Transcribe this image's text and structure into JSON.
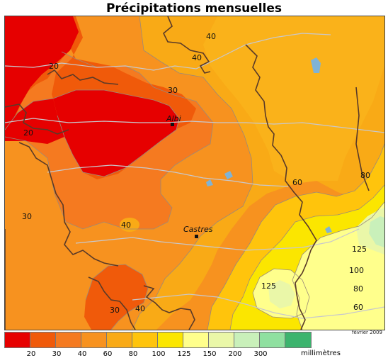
{
  "title": "Précipitations mensuelles",
  "date": "février 2009",
  "unit": "millimètres",
  "legend": {
    "colors": [
      "#e60000",
      "#f05a0a",
      "#f57a20",
      "#f7921f",
      "#f9aa16",
      "#ffc40c",
      "#fbe600",
      "#ffff8c",
      "#eaf7a8",
      "#c9f0ba",
      "#8fe0a0",
      "#3cb46e"
    ],
    "ticks": [
      "20",
      "30",
      "40",
      "60",
      "80",
      "100",
      "125",
      "150",
      "200",
      "300"
    ]
  },
  "cities": [
    {
      "name": "Albi"
    },
    {
      "name": "Castres"
    }
  ],
  "contour_labels": [
    "20",
    "20",
    "30",
    "30",
    "40",
    "40",
    "40",
    "30",
    "40",
    "60",
    "80",
    "125",
    "100",
    "80",
    "60",
    "125"
  ]
}
